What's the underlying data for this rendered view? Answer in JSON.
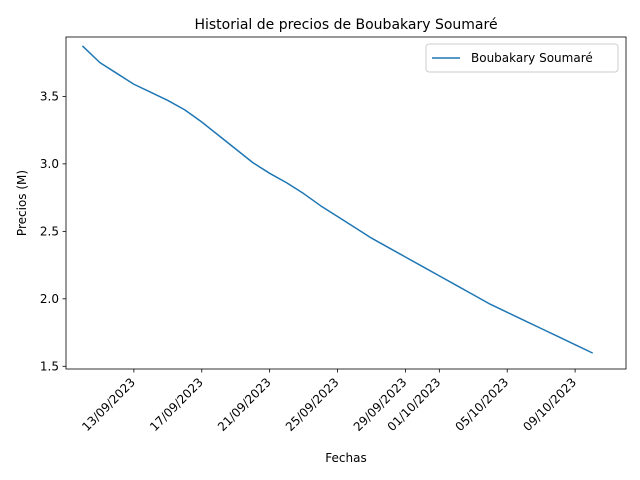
{
  "chart_data": {
    "type": "line",
    "title": "Historial de precios de Boubakary Soumaré",
    "xlabel": "Fechas",
    "ylabel": "Precios (M)",
    "x_tick_labels": [
      "13/09/2023",
      "17/09/2023",
      "21/09/2023",
      "25/09/2023",
      "29/09/2023",
      "01/10/2023",
      "05/10/2023",
      "09/10/2023"
    ],
    "x_tick_dates": [
      "2023-09-13",
      "2023-09-17",
      "2023-09-21",
      "2023-09-25",
      "2023-09-29",
      "2023-10-01",
      "2023-10-05",
      "2023-10-09"
    ],
    "y_ticks": [
      1.5,
      2.0,
      2.5,
      3.0,
      3.5
    ],
    "y_tick_labels": [
      "1.5",
      "2.0",
      "2.5",
      "3.0",
      "3.5"
    ],
    "xlim": [
      "2023-09-09",
      "2023-10-12"
    ],
    "ylim": [
      1.48,
      3.94
    ],
    "grid": false,
    "legend_position": "top-right",
    "series": [
      {
        "name": "Boubakary Soumaré",
        "color": "#1f77b4",
        "x": [
          "2023-09-10",
          "2023-09-11",
          "2023-09-12",
          "2023-09-13",
          "2023-09-14",
          "2023-09-15",
          "2023-09-16",
          "2023-09-17",
          "2023-09-18",
          "2023-09-19",
          "2023-09-20",
          "2023-09-21",
          "2023-09-22",
          "2023-09-23",
          "2023-09-24",
          "2023-09-25",
          "2023-09-26",
          "2023-09-27",
          "2023-09-28",
          "2023-09-29",
          "2023-09-30",
          "2023-10-01",
          "2023-10-02",
          "2023-10-03",
          "2023-10-04",
          "2023-10-05",
          "2023-10-06",
          "2023-10-07",
          "2023-10-08",
          "2023-10-09",
          "2023-10-10"
        ],
        "values": [
          3.87,
          3.75,
          3.67,
          3.59,
          3.53,
          3.47,
          3.4,
          3.31,
          3.21,
          3.11,
          3.01,
          2.93,
          2.86,
          2.78,
          2.69,
          2.61,
          2.53,
          2.45,
          2.38,
          2.31,
          2.24,
          2.17,
          2.1,
          2.03,
          1.96,
          1.9,
          1.84,
          1.78,
          1.72,
          1.66,
          1.6
        ]
      }
    ]
  }
}
